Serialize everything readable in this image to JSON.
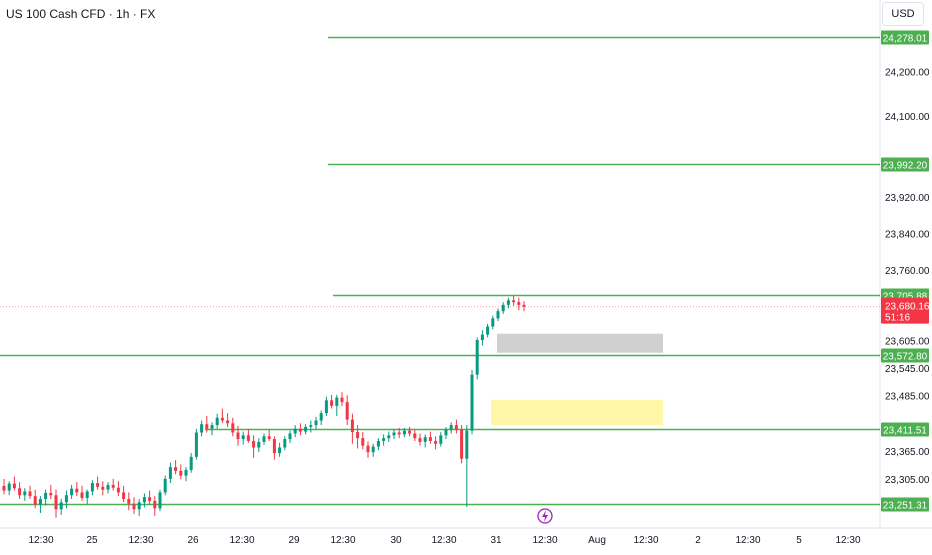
{
  "header": {
    "title": "US 100 Cash CFD · 1h · FX",
    "currency": "USD"
  },
  "colors": {
    "up": "#089981",
    "down": "#f23645",
    "level_line": "#4caf50",
    "level_label_bg": "#4caf50",
    "price_label_bg": "#f23645",
    "supply_zone": "#c8c8c8",
    "demand_zone": "#fff59d",
    "event_icon": "#9c27b0"
  },
  "chart_data": {
    "type": "candlestick",
    "title": "US 100 Cash CFD · 1h · FX",
    "y_axis": {
      "ticks": [
        "24,200.00",
        "24,100.00",
        "23,920.00",
        "23,840.00",
        "23,760.00",
        "23,605.00",
        "23,545.00",
        "23,485.00",
        "23,365.00",
        "23,305.00"
      ]
    },
    "x_axis": {
      "ticks": [
        "12:30",
        "25",
        "12:30",
        "26",
        "12:30",
        "29",
        "12:30",
        "30",
        "12:30",
        "31",
        "12:30",
        "Aug",
        "12:30",
        "2",
        "12:30",
        "5",
        "12:30"
      ]
    },
    "levels": [
      {
        "label": "24,278.01"
      },
      {
        "label": "23,992.20"
      },
      {
        "label": "23,705.88"
      },
      {
        "label": "23,572.80"
      },
      {
        "label": "23,411.51"
      },
      {
        "label": "23,251.31"
      }
    ],
    "current_price": {
      "label": "23,680.16",
      "countdown": "51:16"
    },
    "zones": [
      {
        "name": "supply-zone",
        "color": "gray"
      },
      {
        "name": "demand-zone",
        "color": "yellow"
      }
    ],
    "candles": [
      [
        23290,
        23305,
        23272,
        23280
      ],
      [
        23280,
        23300,
        23270,
        23295
      ],
      [
        23295,
        23310,
        23280,
        23285
      ],
      [
        23285,
        23298,
        23262,
        23270
      ],
      [
        23270,
        23285,
        23258,
        23278
      ],
      [
        23278,
        23290,
        23262,
        23268
      ],
      [
        23268,
        23282,
        23242,
        23250
      ],
      [
        23250,
        23268,
        23232,
        23262
      ],
      [
        23262,
        23282,
        23248,
        23275
      ],
      [
        23275,
        23292,
        23262,
        23270
      ],
      [
        23270,
        23282,
        23222,
        23240
      ],
      [
        23240,
        23262,
        23228,
        23255
      ],
      [
        23255,
        23280,
        23242,
        23270
      ],
      [
        23270,
        23292,
        23262,
        23284
      ],
      [
        23284,
        23298,
        23268,
        23276
      ],
      [
        23276,
        23290,
        23258,
        23264
      ],
      [
        23264,
        23282,
        23250,
        23278
      ],
      [
        23278,
        23302,
        23270,
        23296
      ],
      [
        23296,
        23310,
        23282,
        23288
      ],
      [
        23288,
        23300,
        23270,
        23282
      ],
      [
        23282,
        23298,
        23274,
        23292
      ],
      [
        23292,
        23305,
        23280,
        23286
      ],
      [
        23286,
        23300,
        23268,
        23276
      ],
      [
        23276,
        23290,
        23255,
        23262
      ],
      [
        23262,
        23276,
        23238,
        23252
      ],
      [
        23252,
        23266,
        23230,
        23240
      ],
      [
        23240,
        23262,
        23226,
        23255
      ],
      [
        23255,
        23274,
        23244,
        23266
      ],
      [
        23266,
        23280,
        23250,
        23258
      ],
      [
        23258,
        23268,
        23226,
        23242
      ],
      [
        23242,
        23282,
        23236,
        23276
      ],
      [
        23276,
        23312,
        23270,
        23305
      ],
      [
        23305,
        23340,
        23296,
        23330
      ],
      [
        23330,
        23345,
        23315,
        23322
      ],
      [
        23322,
        23336,
        23304,
        23312
      ],
      [
        23312,
        23330,
        23300,
        23324
      ],
      [
        23324,
        23360,
        23318,
        23352
      ],
      [
        23352,
        23412,
        23346,
        23404
      ],
      [
        23404,
        23430,
        23396,
        23422
      ],
      [
        23422,
        23440,
        23404,
        23412
      ],
      [
        23412,
        23426,
        23398,
        23420
      ],
      [
        23420,
        23445,
        23412,
        23436
      ],
      [
        23436,
        23456,
        23424,
        23430
      ],
      [
        23430,
        23446,
        23416,
        23424
      ],
      [
        23424,
        23436,
        23396,
        23404
      ],
      [
        23404,
        23418,
        23376,
        23390
      ],
      [
        23390,
        23406,
        23378,
        23398
      ],
      [
        23398,
        23412,
        23382,
        23386
      ],
      [
        23386,
        23398,
        23350,
        23372
      ],
      [
        23372,
        23392,
        23362,
        23384
      ],
      [
        23384,
        23402,
        23378,
        23396
      ],
      [
        23396,
        23410,
        23386,
        23390
      ],
      [
        23390,
        23396,
        23346,
        23360
      ],
      [
        23360,
        23382,
        23352,
        23372
      ],
      [
        23372,
        23396,
        23366,
        23390
      ],
      [
        23390,
        23408,
        23382,
        23402
      ],
      [
        23402,
        23420,
        23394,
        23412
      ],
      [
        23412,
        23424,
        23398,
        23406
      ],
      [
        23406,
        23422,
        23400,
        23416
      ],
      [
        23416,
        23430,
        23404,
        23420
      ],
      [
        23420,
        23438,
        23410,
        23430
      ],
      [
        23430,
        23452,
        23420,
        23446
      ],
      [
        23446,
        23482,
        23440,
        23474
      ],
      [
        23474,
        23486,
        23456,
        23462
      ],
      [
        23462,
        23486,
        23440,
        23480
      ],
      [
        23480,
        23492,
        23462,
        23470
      ],
      [
        23470,
        23485,
        23420,
        23432
      ],
      [
        23432,
        23445,
        23380,
        23405
      ],
      [
        23405,
        23420,
        23370,
        23392
      ],
      [
        23392,
        23405,
        23368,
        23376
      ],
      [
        23376,
        23385,
        23350,
        23362
      ],
      [
        23362,
        23380,
        23352,
        23374
      ],
      [
        23374,
        23392,
        23366,
        23386
      ],
      [
        23386,
        23400,
        23376,
        23392
      ],
      [
        23392,
        23406,
        23384,
        23398
      ],
      [
        23398,
        23412,
        23390,
        23404
      ],
      [
        23404,
        23414,
        23392,
        23400
      ],
      [
        23400,
        23414,
        23394,
        23408
      ],
      [
        23408,
        23416,
        23396,
        23402
      ],
      [
        23402,
        23410,
        23386,
        23392
      ],
      [
        23392,
        23402,
        23376,
        23384
      ],
      [
        23384,
        23400,
        23372,
        23394
      ],
      [
        23394,
        23406,
        23380,
        23386
      ],
      [
        23386,
        23396,
        23368,
        23380
      ],
      [
        23380,
        23405,
        23374,
        23398
      ],
      [
        23398,
        23416,
        23390,
        23410
      ],
      [
        23410,
        23426,
        23402,
        23420
      ],
      [
        23420,
        23432,
        23402,
        23410
      ],
      [
        23410,
        23420,
        23338,
        23348
      ],
      [
        23348,
        23420,
        23245,
        23408
      ],
      [
        23408,
        23540,
        23400,
        23530
      ],
      [
        23530,
        23612,
        23520,
        23606
      ],
      [
        23606,
        23628,
        23594,
        23618
      ],
      [
        23618,
        23642,
        23612,
        23636
      ],
      [
        23636,
        23660,
        23630,
        23654
      ],
      [
        23654,
        23676,
        23648,
        23670
      ],
      [
        23670,
        23690,
        23664,
        23684
      ],
      [
        23684,
        23700,
        23676,
        23694
      ],
      [
        23694,
        23704,
        23682,
        23690
      ],
      [
        23690,
        23700,
        23672,
        23684
      ],
      [
        23684,
        23692,
        23670,
        23680
      ]
    ]
  }
}
